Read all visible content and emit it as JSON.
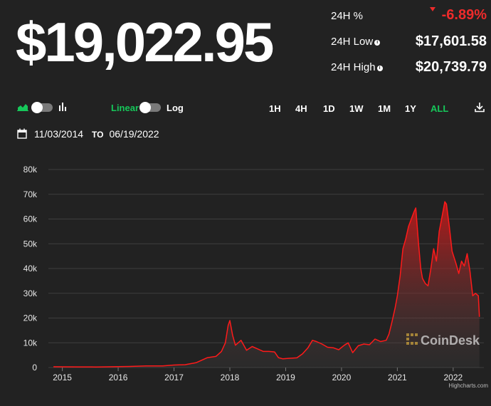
{
  "price": "$19,022.95",
  "stats": {
    "change_label": "24H %",
    "change_value": "-6.89%",
    "low_label": "24H Low",
    "low_value": "$17,601.58",
    "high_label": "24H High",
    "high_value": "$20,739.79"
  },
  "toolbar": {
    "linear_label": "Linear",
    "log_label": "Log",
    "ranges": [
      "1H",
      "4H",
      "1D",
      "1W",
      "1M",
      "1Y",
      "ALL"
    ],
    "active_range": "ALL"
  },
  "dates": {
    "from": "11/03/2014",
    "to_label": "TO",
    "to": "06/19/2022"
  },
  "watermark": "CoinDesk",
  "credit": "Highcharts.com",
  "colors": {
    "accent": "#16c75a",
    "negative": "#ee2b2b",
    "line": "#ff1a1a",
    "background": "#222222"
  },
  "chart_data": {
    "type": "area",
    "ylim": [
      0,
      80000
    ],
    "yticks": [
      0,
      10000,
      20000,
      30000,
      40000,
      50000,
      60000,
      70000,
      80000
    ],
    "ytick_labels": [
      "0",
      "10k",
      "20k",
      "30k",
      "40k",
      "50k",
      "60k",
      "70k",
      "80k"
    ],
    "xtick_labels": [
      "2015",
      "2016",
      "2017",
      "2018",
      "2019",
      "2020",
      "2021",
      "2022"
    ],
    "grid": true,
    "x": [
      2014.84,
      2015.0,
      2015.3,
      2015.6,
      2015.9,
      2016.2,
      2016.5,
      2016.8,
      2017.0,
      2017.2,
      2017.4,
      2017.6,
      2017.75,
      2017.85,
      2017.92,
      2017.97,
      2018.0,
      2018.05,
      2018.1,
      2018.2,
      2018.3,
      2018.4,
      2018.5,
      2018.6,
      2018.7,
      2018.8,
      2018.87,
      2018.95,
      2019.05,
      2019.2,
      2019.3,
      2019.4,
      2019.48,
      2019.55,
      2019.65,
      2019.75,
      2019.85,
      2019.95,
      2020.05,
      2020.12,
      2020.2,
      2020.3,
      2020.4,
      2020.5,
      2020.6,
      2020.7,
      2020.8,
      2020.85,
      2020.9,
      2020.96,
      2021.0,
      2021.05,
      2021.1,
      2021.15,
      2021.2,
      2021.25,
      2021.3,
      2021.33,
      2021.38,
      2021.42,
      2021.45,
      2021.5,
      2021.55,
      2021.6,
      2021.65,
      2021.7,
      2021.75,
      2021.8,
      2021.85,
      2021.88,
      2021.93,
      2021.98,
      2022.05,
      2022.1,
      2022.15,
      2022.2,
      2022.25,
      2022.3,
      2022.35,
      2022.4,
      2022.45,
      2022.47
    ],
    "values": [
      330,
      300,
      250,
      230,
      330,
      420,
      650,
      640,
      1000,
      1150,
      2000,
      4000,
      4500,
      6500,
      10000,
      17000,
      19000,
      13000,
      9000,
      11000,
      7000,
      8500,
      7500,
      6500,
      6500,
      6300,
      4000,
      3500,
      3700,
      3900,
      5500,
      8000,
      11000,
      10500,
      9500,
      8200,
      8000,
      7200,
      9000,
      10000,
      6000,
      8800,
      9500,
      9200,
      11500,
      10500,
      11000,
      13500,
      18000,
      24000,
      29000,
      37000,
      48000,
      52000,
      57000,
      60000,
      63000,
      64500,
      50000,
      40000,
      36000,
      34000,
      33000,
      40000,
      48000,
      43000,
      55000,
      61000,
      67000,
      66000,
      57000,
      47000,
      42000,
      38000,
      43000,
      41000,
      46000,
      39000,
      29000,
      30000,
      29000,
      20500
    ]
  }
}
